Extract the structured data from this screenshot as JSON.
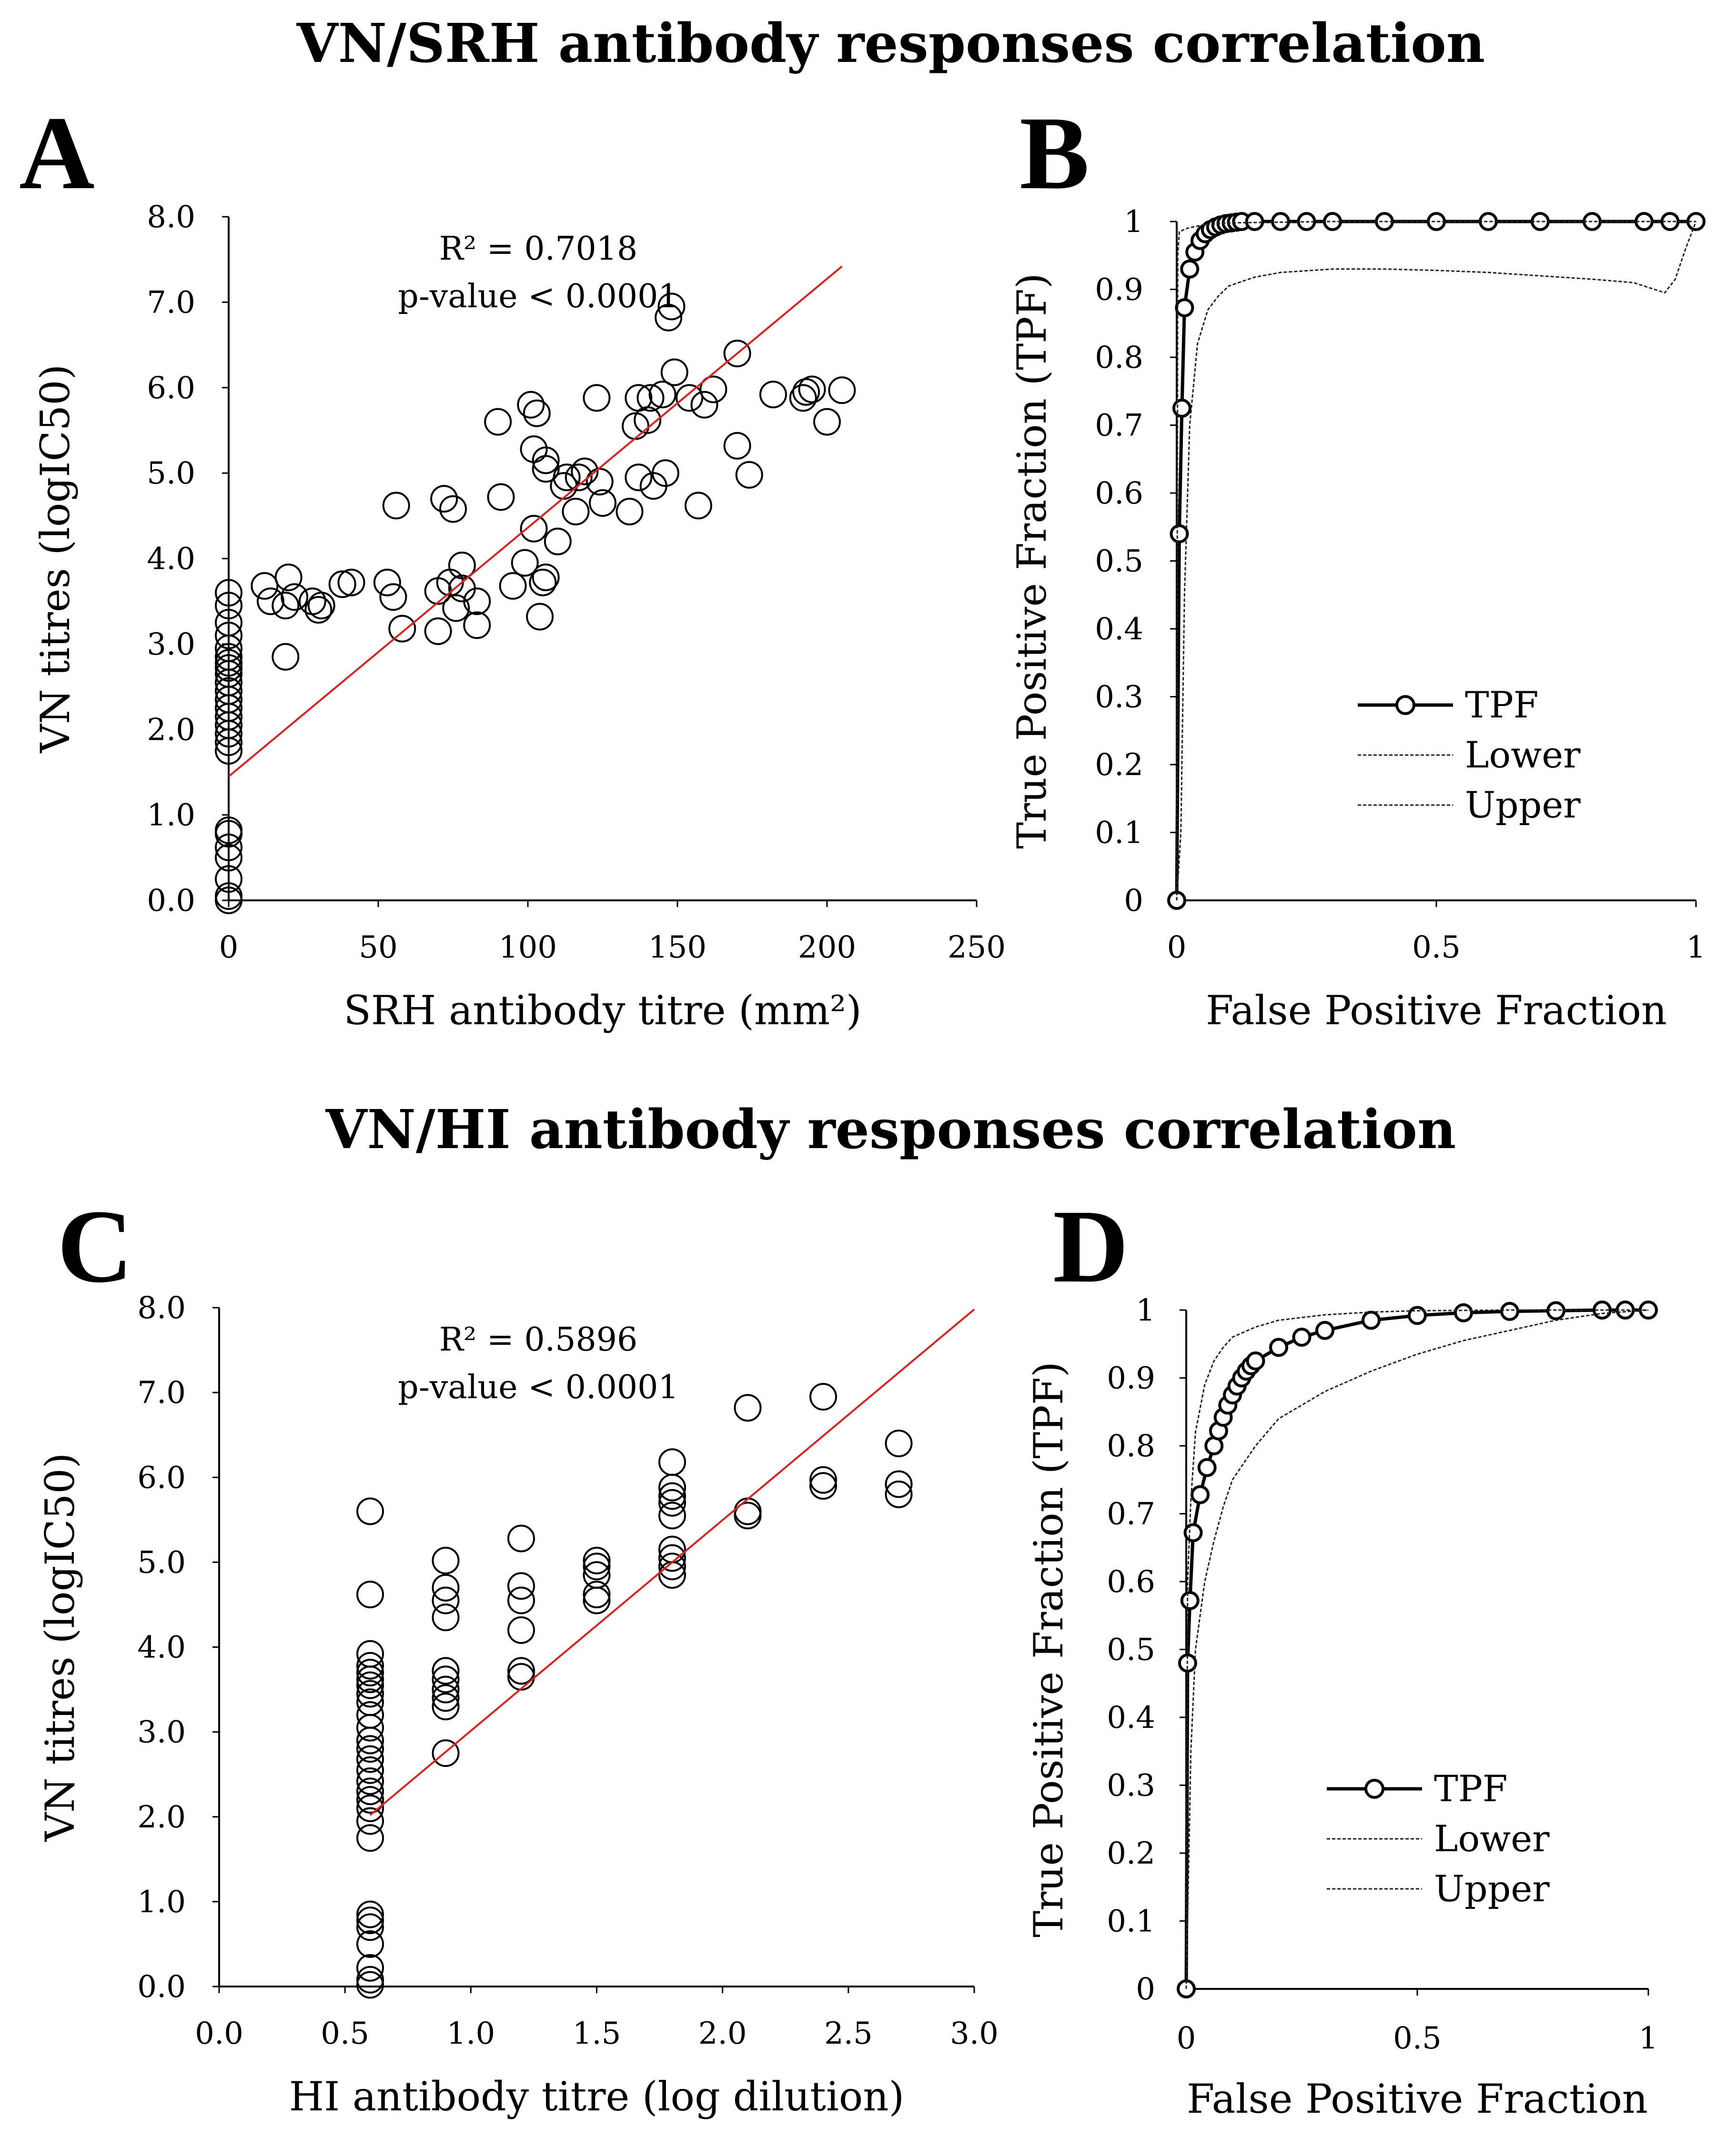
{
  "figure": {
    "title_top": "VN/SRH antibody responses correlation",
    "title_bottom": "VN/HI antibody responses correlation"
  },
  "chart_data": [
    {
      "id": "A",
      "panel_letter": "A",
      "type": "scatter",
      "xlabel": "SRH antibody titre (mm²)",
      "ylabel": "VN titres (logIC50)",
      "xlim": [
        0,
        250
      ],
      "ylim": [
        0,
        8
      ],
      "xticks": [
        "0",
        "50",
        "100",
        "150",
        "200",
        "250"
      ],
      "xtick_values": [
        0,
        50,
        100,
        150,
        200,
        250
      ],
      "yticks": [
        "0.0",
        "1.0",
        "2.0",
        "3.0",
        "4.0",
        "5.0",
        "6.0",
        "7.0",
        "8.0"
      ],
      "ytick_values": [
        0,
        1,
        2,
        3,
        4,
        5,
        6,
        7,
        8
      ],
      "annotations": [
        "R² = 0.7018",
        "p-value < 0.0001"
      ],
      "regression": {
        "x1": 0,
        "y1": 1.45,
        "x2": 205,
        "y2": 7.42,
        "color": "#e02020"
      },
      "marker_color": "#000000",
      "points": [
        [
          0,
          0.0
        ],
        [
          0,
          0.05
        ],
        [
          0,
          0.25
        ],
        [
          0,
          0.5
        ],
        [
          0,
          0.62
        ],
        [
          0,
          0.78
        ],
        [
          0,
          0.82
        ],
        [
          0,
          1.75
        ],
        [
          0,
          1.85
        ],
        [
          0,
          1.95
        ],
        [
          0,
          2.05
        ],
        [
          0,
          2.15
        ],
        [
          0,
          2.25
        ],
        [
          0,
          2.35
        ],
        [
          0,
          2.45
        ],
        [
          0,
          2.55
        ],
        [
          0,
          2.65
        ],
        [
          0,
          2.72
        ],
        [
          0,
          2.78
        ],
        [
          0,
          2.85
        ],
        [
          0,
          2.95
        ],
        [
          0,
          3.1
        ],
        [
          0,
          3.25
        ],
        [
          0,
          3.45
        ],
        [
          0,
          3.6
        ],
        [
          12,
          3.68
        ],
        [
          14,
          3.5
        ],
        [
          19,
          2.85
        ],
        [
          19,
          3.45
        ],
        [
          20,
          3.78
        ],
        [
          22,
          3.55
        ],
        [
          28,
          3.5
        ],
        [
          30,
          3.4
        ],
        [
          31,
          3.45
        ],
        [
          38,
          3.7
        ],
        [
          41,
          3.72
        ],
        [
          53,
          3.72
        ],
        [
          55,
          3.55
        ],
        [
          56,
          4.62
        ],
        [
          58,
          3.18
        ],
        [
          70,
          3.62
        ],
        [
          70,
          3.15
        ],
        [
          72,
          4.7
        ],
        [
          74,
          3.72
        ],
        [
          75,
          4.58
        ],
        [
          76,
          3.42
        ],
        [
          78,
          3.92
        ],
        [
          78,
          3.65
        ],
        [
          83,
          3.5
        ],
        [
          83,
          3.22
        ],
        [
          90,
          5.6
        ],
        [
          91,
          4.72
        ],
        [
          95,
          3.68
        ],
        [
          99,
          3.95
        ],
        [
          101,
          5.8
        ],
        [
          102,
          5.28
        ],
        [
          102,
          4.35
        ],
        [
          103,
          5.7
        ],
        [
          104,
          3.32
        ],
        [
          105,
          3.72
        ],
        [
          106,
          3.78
        ],
        [
          106,
          5.15
        ],
        [
          106,
          5.05
        ],
        [
          110,
          4.2
        ],
        [
          112,
          4.85
        ],
        [
          113,
          4.95
        ],
        [
          116,
          4.55
        ],
        [
          117,
          4.95
        ],
        [
          119,
          5.02
        ],
        [
          123,
          5.88
        ],
        [
          124,
          4.9
        ],
        [
          125,
          4.65
        ],
        [
          134,
          4.55
        ],
        [
          136,
          5.55
        ],
        [
          137,
          4.95
        ],
        [
          137,
          5.88
        ],
        [
          140,
          5.62
        ],
        [
          141,
          5.88
        ],
        [
          142,
          4.85
        ],
        [
          145,
          5.92
        ],
        [
          146,
          5.0
        ],
        [
          147,
          6.82
        ],
        [
          148,
          6.95
        ],
        [
          149,
          6.18
        ],
        [
          154,
          5.88
        ],
        [
          157,
          4.62
        ],
        [
          159,
          5.8
        ],
        [
          162,
          5.98
        ],
        [
          170,
          6.4
        ],
        [
          170,
          5.32
        ],
        [
          174,
          4.98
        ],
        [
          182,
          5.92
        ],
        [
          192,
          5.88
        ],
        [
          193,
          5.95
        ],
        [
          195,
          5.98
        ],
        [
          200,
          5.6
        ],
        [
          205,
          5.97
        ]
      ]
    },
    {
      "id": "B",
      "panel_letter": "B",
      "type": "line",
      "xlabel": "False Positive Fraction",
      "ylabel": "True Positive Fraction (TPF)",
      "xlim": [
        0,
        1
      ],
      "ylim": [
        0,
        1
      ],
      "xticks": [
        "0",
        "0.5",
        "1"
      ],
      "xtick_values": [
        0,
        0.5,
        1
      ],
      "yticks": [
        "0",
        "0.1",
        "0.2",
        "0.3",
        "0.4",
        "0.5",
        "0.6",
        "0.7",
        "0.8",
        "0.9",
        "1"
      ],
      "ytick_values": [
        0,
        0.1,
        0.2,
        0.3,
        0.4,
        0.5,
        0.6,
        0.7,
        0.8,
        0.9,
        1
      ],
      "legend": [
        "TPF",
        "Lower",
        "Upper"
      ],
      "series": [
        {
          "name": "TPF",
          "style": "marker",
          "x": [
            0,
            0.005,
            0.01,
            0.015,
            0.025,
            0.035,
            0.045,
            0.055,
            0.065,
            0.075,
            0.085,
            0.095,
            0.105,
            0.115,
            0.125,
            0.15,
            0.2,
            0.25,
            0.3,
            0.4,
            0.5,
            0.6,
            0.7,
            0.8,
            0.9,
            0.95,
            1.0
          ],
          "y": [
            0,
            0.54,
            0.725,
            0.873,
            0.93,
            0.955,
            0.972,
            0.982,
            0.988,
            0.992,
            0.995,
            0.997,
            0.998,
            0.999,
            1,
            1,
            1,
            1,
            1,
            1,
            1,
            1,
            1,
            1,
            1,
            1,
            1
          ]
        },
        {
          "name": "Lower",
          "style": "dashed",
          "x": [
            0,
            0.008,
            0.015,
            0.025,
            0.04,
            0.06,
            0.08,
            0.1,
            0.15,
            0.2,
            0.3,
            0.4,
            0.5,
            0.6,
            0.7,
            0.8,
            0.88,
            0.92,
            0.94,
            0.96,
            0.98,
            1.0
          ],
          "y": [
            0,
            0.1,
            0.45,
            0.7,
            0.82,
            0.87,
            0.89,
            0.905,
            0.918,
            0.925,
            0.93,
            0.93,
            0.928,
            0.925,
            0.92,
            0.915,
            0.91,
            0.9,
            0.895,
            0.915,
            0.96,
            1.0
          ]
        },
        {
          "name": "Upper",
          "style": "dashed",
          "x": [
            0,
            0.002,
            0.005,
            0.02,
            0.05,
            0.1,
            0.3,
            0.6,
            1.0
          ],
          "y": [
            0,
            0.95,
            0.985,
            0.99,
            0.995,
            0.998,
            1,
            1,
            1
          ]
        }
      ]
    },
    {
      "id": "C",
      "panel_letter": "C",
      "type": "scatter",
      "xlabel": "HI antibody titre (log dilution)",
      "ylabel": "VN titres (logIC50)",
      "xlim": [
        0,
        3
      ],
      "ylim": [
        0,
        8
      ],
      "xticks": [
        "0.0",
        "0.5",
        "1.0",
        "1.5",
        "2.0",
        "2.5",
        "3.0"
      ],
      "xtick_values": [
        0,
        0.5,
        1.0,
        1.5,
        2.0,
        2.5,
        3.0
      ],
      "yticks": [
        "0.0",
        "1.0",
        "2.0",
        "3.0",
        "4.0",
        "5.0",
        "6.0",
        "7.0",
        "8.0"
      ],
      "ytick_values": [
        0,
        1,
        2,
        3,
        4,
        5,
        6,
        7,
        8
      ],
      "annotations": [
        "R² = 0.5896",
        "p-value < 0.0001"
      ],
      "regression": {
        "x1": 0.6,
        "y1": 2.02,
        "x2": 3.0,
        "y2": 7.98,
        "color": "#e02020"
      },
      "marker_color": "#000000",
      "points": [
        [
          0.6,
          0.02
        ],
        [
          0.6,
          0.08
        ],
        [
          0.6,
          0.22
        ],
        [
          0.6,
          0.5
        ],
        [
          0.6,
          0.7
        ],
        [
          0.6,
          0.78
        ],
        [
          0.6,
          0.85
        ],
        [
          0.6,
          1.75
        ],
        [
          0.6,
          1.95
        ],
        [
          0.6,
          2.1
        ],
        [
          0.6,
          2.2
        ],
        [
          0.6,
          2.3
        ],
        [
          0.6,
          2.42
        ],
        [
          0.6,
          2.55
        ],
        [
          0.6,
          2.68
        ],
        [
          0.6,
          2.8
        ],
        [
          0.6,
          2.9
        ],
        [
          0.6,
          3.05
        ],
        [
          0.6,
          3.2
        ],
        [
          0.6,
          3.35
        ],
        [
          0.6,
          3.45
        ],
        [
          0.6,
          3.55
        ],
        [
          0.6,
          3.62
        ],
        [
          0.6,
          3.7
        ],
        [
          0.6,
          3.78
        ],
        [
          0.6,
          3.92
        ],
        [
          0.6,
          4.62
        ],
        [
          0.6,
          5.6
        ],
        [
          0.9,
          2.75
        ],
        [
          0.9,
          3.3
        ],
        [
          0.9,
          3.4
        ],
        [
          0.9,
          3.5
        ],
        [
          0.9,
          3.62
        ],
        [
          0.9,
          3.72
        ],
        [
          0.9,
          4.35
        ],
        [
          0.9,
          4.55
        ],
        [
          0.9,
          4.7
        ],
        [
          0.9,
          5.02
        ],
        [
          1.2,
          3.65
        ],
        [
          1.2,
          3.72
        ],
        [
          1.2,
          4.2
        ],
        [
          1.2,
          4.55
        ],
        [
          1.2,
          4.72
        ],
        [
          1.2,
          5.28
        ],
        [
          1.5,
          4.55
        ],
        [
          1.5,
          4.62
        ],
        [
          1.5,
          4.85
        ],
        [
          1.5,
          4.95
        ],
        [
          1.5,
          5.02
        ],
        [
          1.8,
          4.85
        ],
        [
          1.8,
          4.95
        ],
        [
          1.8,
          5.05
        ],
        [
          1.8,
          5.15
        ],
        [
          1.8,
          5.55
        ],
        [
          1.8,
          5.7
        ],
        [
          1.8,
          5.78
        ],
        [
          1.8,
          5.88
        ],
        [
          1.8,
          6.18
        ],
        [
          2.1,
          5.55
        ],
        [
          2.1,
          5.6
        ],
        [
          2.1,
          6.82
        ],
        [
          2.4,
          5.9
        ],
        [
          2.4,
          5.97
        ],
        [
          2.4,
          6.95
        ],
        [
          2.7,
          5.8
        ],
        [
          2.7,
          5.92
        ],
        [
          2.7,
          6.4
        ]
      ]
    },
    {
      "id": "D",
      "panel_letter": "D",
      "type": "line",
      "xlabel": "False Positive Fraction",
      "ylabel": "True Positive Fraction (TPF)",
      "xlim": [
        0,
        1
      ],
      "ylim": [
        0,
        1
      ],
      "xticks": [
        "0",
        "0.5",
        "1"
      ],
      "xtick_values": [
        0,
        0.5,
        1
      ],
      "yticks": [
        "0",
        "0.1",
        "0.2",
        "0.3",
        "0.4",
        "0.5",
        "0.6",
        "0.7",
        "0.8",
        "0.9",
        "1"
      ],
      "ytick_values": [
        0,
        0.1,
        0.2,
        0.3,
        0.4,
        0.5,
        0.6,
        0.7,
        0.8,
        0.9,
        1
      ],
      "legend": [
        "TPF",
        "Lower",
        "Upper"
      ],
      "series": [
        {
          "name": "TPF",
          "style": "marker",
          "x": [
            0,
            0.003,
            0.008,
            0.015,
            0.03,
            0.045,
            0.06,
            0.07,
            0.08,
            0.09,
            0.1,
            0.11,
            0.12,
            0.13,
            0.14,
            0.15,
            0.2,
            0.25,
            0.3,
            0.4,
            0.5,
            0.6,
            0.7,
            0.8,
            0.9,
            0.95,
            1.0
          ],
          "y": [
            0,
            0.48,
            0.572,
            0.672,
            0.728,
            0.768,
            0.8,
            0.822,
            0.842,
            0.86,
            0.875,
            0.888,
            0.9,
            0.91,
            0.918,
            0.925,
            0.945,
            0.96,
            0.97,
            0.985,
            0.992,
            0.996,
            0.998,
            0.999,
            1,
            1,
            1
          ]
        },
        {
          "name": "Lower",
          "style": "dashed",
          "x": [
            0,
            0.01,
            0.02,
            0.04,
            0.06,
            0.08,
            0.1,
            0.15,
            0.2,
            0.3,
            0.4,
            0.5,
            0.6,
            0.7,
            0.8,
            0.9,
            1.0
          ],
          "y": [
            0,
            0.35,
            0.5,
            0.6,
            0.66,
            0.71,
            0.75,
            0.8,
            0.84,
            0.88,
            0.91,
            0.935,
            0.955,
            0.97,
            0.985,
            0.995,
            1.0
          ]
        },
        {
          "name": "Upper",
          "style": "dashed",
          "x": [
            0,
            0.003,
            0.01,
            0.02,
            0.04,
            0.06,
            0.08,
            0.1,
            0.15,
            0.2,
            0.3,
            0.4,
            0.5,
            0.7,
            1.0
          ],
          "y": [
            0,
            0.6,
            0.72,
            0.82,
            0.89,
            0.925,
            0.945,
            0.96,
            0.975,
            0.985,
            0.993,
            0.997,
            0.999,
            1,
            1
          ]
        }
      ]
    }
  ]
}
